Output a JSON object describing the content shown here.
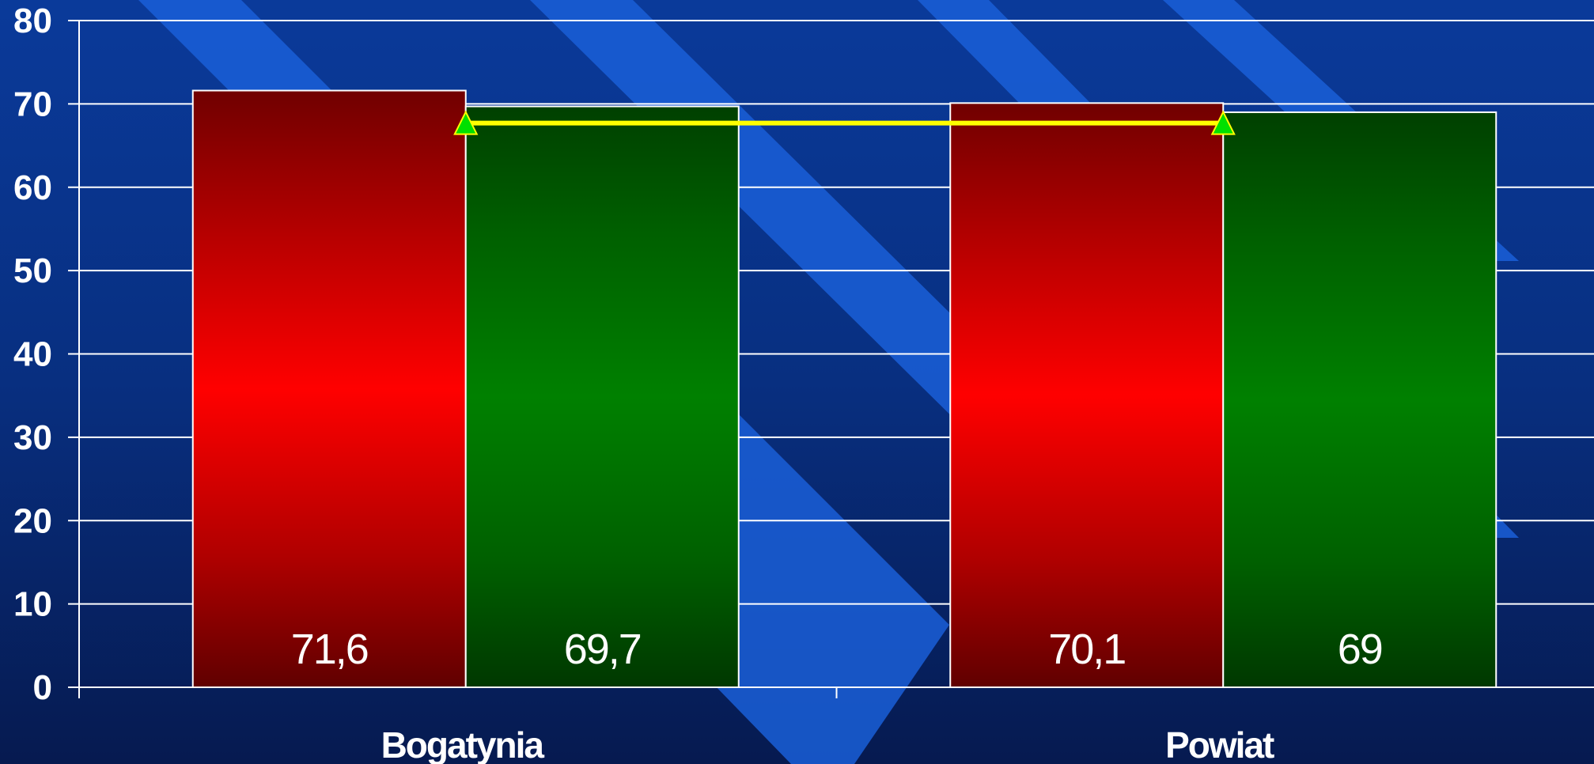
{
  "chart_data": {
    "type": "bar",
    "categories": [
      "Bogatynia",
      "Powiat"
    ],
    "series": [
      {
        "values": [
          71.6,
          70.1
        ],
        "color": "#e00000"
      },
      {
        "values": [
          69.7,
          69
        ],
        "color": "#008000"
      }
    ],
    "value_labels": [
      [
        "71,6",
        "70,1"
      ],
      [
        "69,7",
        "69"
      ]
    ],
    "overlay_line": {
      "values": [
        67.7,
        67.7
      ],
      "color": "#ffff00",
      "marker_color": "#00e000"
    },
    "ylim": [
      0,
      80
    ],
    "yticks": [
      "0",
      "10",
      "20",
      "30",
      "40",
      "50",
      "60",
      "70",
      "80"
    ],
    "grid": true,
    "title": "",
    "xlabel": "",
    "ylabel": ""
  }
}
